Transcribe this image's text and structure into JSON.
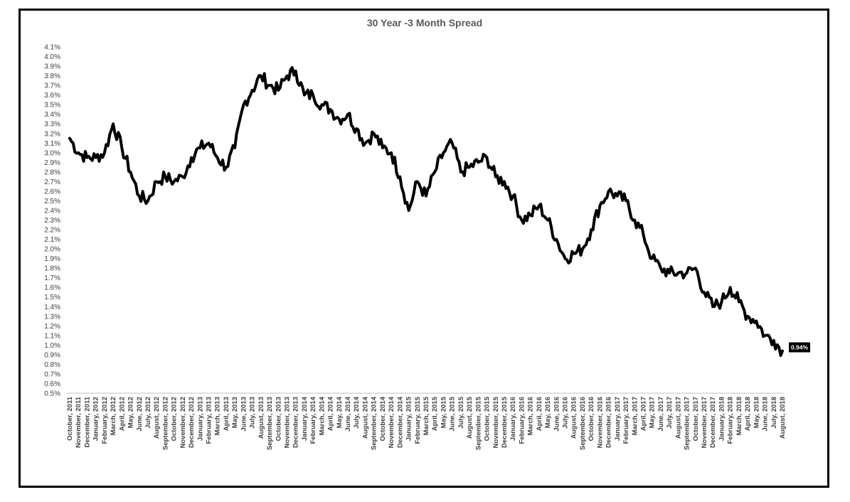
{
  "chart_data": {
    "type": "line",
    "title": "30 Year -3 Month Spread",
    "xlabel": "",
    "ylabel": "",
    "ylim": [
      0.5,
      4.1
    ],
    "y_tick_step": 0.1,
    "y_format": "percent_1dp",
    "grid": false,
    "legend": "none",
    "colors": {
      "line": "#000000",
      "axis": "#bfbfbf",
      "text": "#404040",
      "title": "#595959",
      "label_bg": "#000000",
      "label_text": "#ffffff"
    },
    "last_value_label": "0.94%",
    "categories": [
      "October, 2011",
      "November, 2011",
      "December, 2011",
      "January, 2012",
      "February, 2012",
      "March, 2012",
      "April, 2012",
      "May, 2012",
      "June, 2012",
      "July, 2012",
      "August, 2012",
      "September, 2012",
      "October, 2012",
      "November, 2012",
      "December, 2012",
      "January, 2013",
      "February, 2013",
      "March, 2013",
      "April, 2013",
      "May, 2013",
      "June, 2013",
      "July, 2013",
      "August, 2013",
      "September, 2013",
      "October, 2013",
      "November, 2013",
      "December, 2013",
      "January, 2014",
      "February, 2014",
      "March, 2014",
      "April, 2014",
      "May, 2014",
      "June, 2014",
      "July, 2014",
      "August, 2014",
      "September, 2014",
      "October, 2014",
      "November, 2014",
      "December, 2014",
      "January, 2015",
      "February, 2015",
      "March, 2015",
      "April, 2015",
      "May, 2015",
      "June, 2015",
      "July, 2015",
      "August, 2015",
      "September, 2015",
      "October, 2015",
      "November, 2015",
      "December, 2015",
      "January, 2016",
      "February, 2016",
      "March, 2016",
      "April, 2016",
      "May, 2016",
      "June, 2016",
      "July, 2016",
      "August, 2016",
      "September, 2016",
      "October, 2016",
      "November, 2016",
      "December, 2016",
      "January, 2017",
      "February, 2017",
      "March, 2017",
      "April, 2017",
      "May, 2017",
      "June, 2017",
      "July, 2017",
      "August, 2017",
      "September, 2017",
      "October, 2017",
      "November, 2017",
      "December, 2017",
      "January, 2018",
      "February, 2018",
      "March, 2018",
      "April, 2018",
      "May, 2018",
      "June, 2018",
      "July, 2018",
      "August, 2018"
    ],
    "series": [
      {
        "values": [
          3.15,
          3.0,
          2.95,
          2.95,
          3.0,
          3.3,
          3.05,
          2.8,
          2.55,
          2.5,
          2.7,
          2.75,
          2.7,
          2.75,
          2.95,
          3.05,
          3.1,
          2.95,
          2.85,
          3.05,
          3.5,
          3.65,
          3.8,
          3.7,
          3.65,
          3.8,
          3.85,
          3.6,
          3.6,
          3.5,
          3.45,
          3.35,
          3.4,
          3.25,
          3.1,
          3.2,
          3.05,
          3.0,
          2.75,
          2.4,
          2.7,
          2.55,
          2.8,
          3.0,
          3.1,
          2.8,
          2.85,
          2.9,
          2.95,
          2.75,
          2.7,
          2.55,
          2.3,
          2.35,
          2.45,
          2.3,
          2.1,
          1.9,
          1.95,
          2.0,
          2.2,
          2.45,
          2.6,
          2.55,
          2.5,
          2.3,
          2.15,
          1.9,
          1.8,
          1.75,
          1.75,
          1.75,
          1.8,
          1.55,
          1.4,
          1.45,
          1.6,
          1.45,
          1.3,
          1.25,
          1.1,
          1.05,
          0.94
        ]
      }
    ]
  }
}
